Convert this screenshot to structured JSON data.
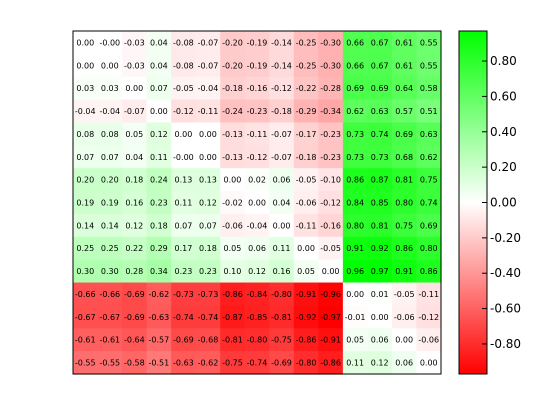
{
  "chart_data": {
    "type": "heatmap",
    "rows": [
      [
        0.0,
        -0.0,
        -0.03,
        0.04,
        -0.08,
        -0.07,
        -0.2,
        -0.19,
        -0.14,
        -0.25,
        -0.3,
        0.66,
        0.67,
        0.61,
        0.55
      ],
      [
        0.0,
        0.0,
        -0.03,
        0.04,
        -0.08,
        -0.07,
        -0.2,
        -0.19,
        -0.14,
        -0.25,
        -0.3,
        0.66,
        0.67,
        0.61,
        0.55
      ],
      [
        0.03,
        0.03,
        0.0,
        0.07,
        -0.05,
        -0.04,
        -0.18,
        -0.16,
        -0.12,
        -0.22,
        -0.28,
        0.69,
        0.69,
        0.64,
        0.58
      ],
      [
        -0.04,
        -0.04,
        -0.07,
        0.0,
        -0.12,
        -0.11,
        -0.24,
        -0.23,
        -0.18,
        -0.29,
        -0.34,
        0.62,
        0.63,
        0.57,
        0.51
      ],
      [
        0.08,
        0.08,
        0.05,
        0.12,
        0.0,
        0.0,
        -0.13,
        -0.11,
        -0.07,
        -0.17,
        -0.23,
        0.73,
        0.74,
        0.69,
        0.63
      ],
      [
        0.07,
        0.07,
        0.04,
        0.11,
        -0.0,
        0.0,
        -0.13,
        -0.12,
        -0.07,
        -0.18,
        -0.23,
        0.73,
        0.73,
        0.68,
        0.62
      ],
      [
        0.2,
        0.2,
        0.18,
        0.24,
        0.13,
        0.13,
        0.0,
        0.02,
        0.06,
        -0.05,
        -0.1,
        0.86,
        0.87,
        0.81,
        0.75
      ],
      [
        0.19,
        0.19,
        0.16,
        0.23,
        0.11,
        0.12,
        -0.02,
        0.0,
        0.04,
        -0.06,
        -0.12,
        0.84,
        0.85,
        0.8,
        0.74
      ],
      [
        0.14,
        0.14,
        0.12,
        0.18,
        0.07,
        0.07,
        -0.06,
        -0.04,
        0.0,
        -0.11,
        -0.16,
        0.8,
        0.81,
        0.75,
        0.69
      ],
      [
        0.25,
        0.25,
        0.22,
        0.29,
        0.17,
        0.18,
        0.05,
        0.06,
        0.11,
        0.0,
        -0.05,
        0.91,
        0.92,
        0.86,
        0.8
      ],
      [
        0.3,
        0.3,
        0.28,
        0.34,
        0.23,
        0.23,
        0.1,
        0.12,
        0.16,
        0.05,
        0.0,
        0.96,
        0.97,
        0.91,
        0.86
      ],
      [
        -0.66,
        -0.66,
        -0.69,
        -0.62,
        -0.73,
        -0.73,
        -0.86,
        -0.84,
        -0.8,
        -0.91,
        -0.96,
        0.0,
        0.01,
        -0.05,
        -0.11
      ],
      [
        -0.67,
        -0.67,
        -0.69,
        -0.63,
        -0.74,
        -0.74,
        -0.87,
        -0.85,
        -0.81,
        -0.92,
        -0.97,
        -0.01,
        0.0,
        -0.06,
        -0.12
      ],
      [
        -0.61,
        -0.61,
        -0.64,
        -0.57,
        -0.69,
        -0.68,
        -0.81,
        -0.8,
        -0.75,
        -0.86,
        -0.91,
        0.05,
        0.06,
        0.0,
        -0.06
      ],
      [
        -0.55,
        -0.55,
        -0.58,
        -0.51,
        -0.63,
        -0.62,
        -0.75,
        -0.74,
        -0.69,
        -0.8,
        -0.86,
        0.11,
        0.12,
        0.06,
        0.0
      ]
    ],
    "colorbar": {
      "vmin": -0.97,
      "vmax": 0.97,
      "ticks": [
        0.8,
        0.6,
        0.4,
        0.2,
        0.0,
        -0.2,
        -0.4,
        -0.6,
        -0.8
      ],
      "tick_labels": [
        "0.80",
        "0.60",
        "0.40",
        "0.20",
        "0.00",
        "-0.20",
        "-0.40",
        "-0.60",
        "-0.80"
      ]
    },
    "colors": {
      "negative": "#ff0000",
      "zero": "#ffffff",
      "positive": "#00ff00"
    },
    "grid": false,
    "legend": "colorbar-right"
  }
}
